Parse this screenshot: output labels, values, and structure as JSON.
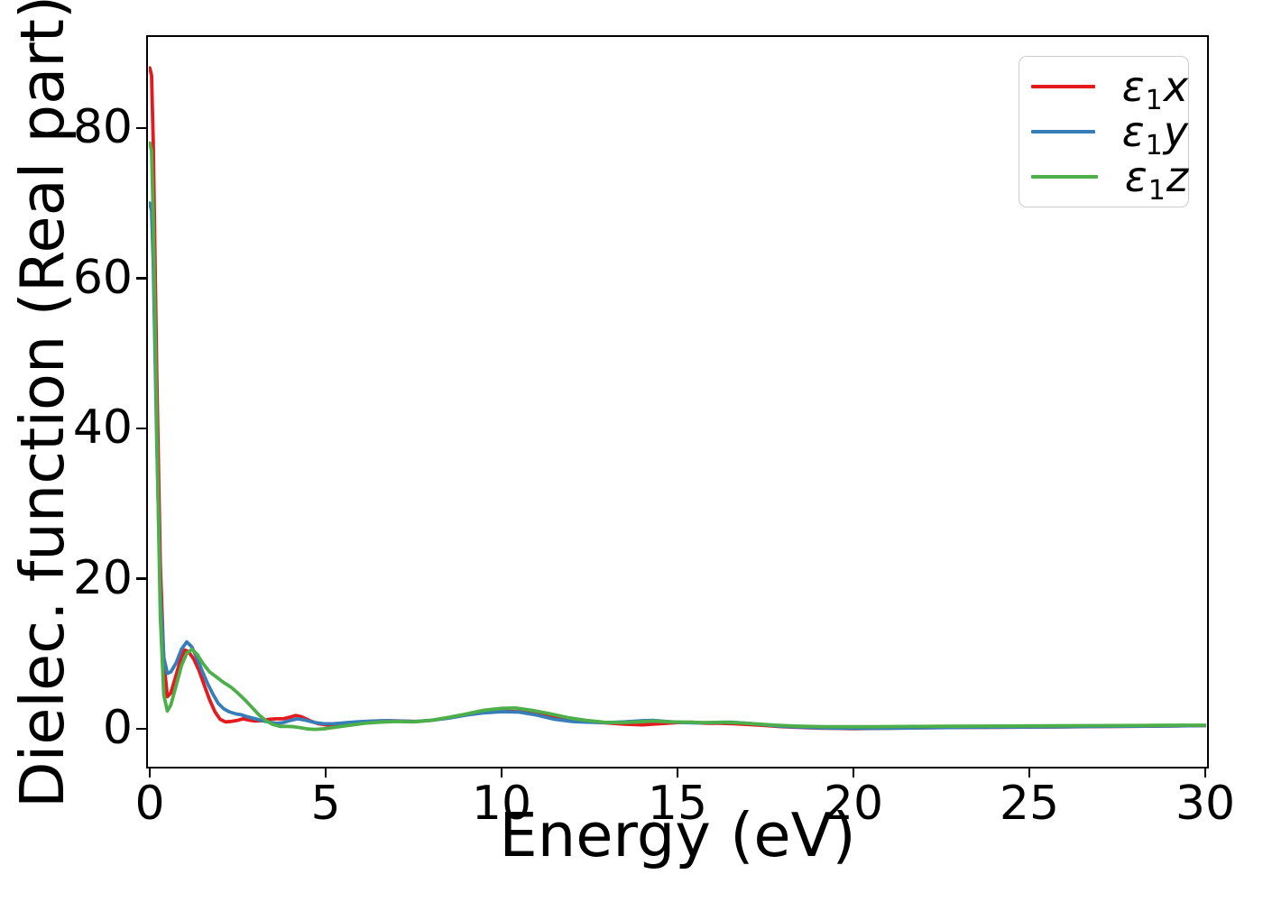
{
  "figure": {
    "xlabel": "Energy (eV)",
    "ylabel": "Dielec. function (Real part)",
    "background_color": "#ffffff",
    "spine_color": "#000000"
  },
  "legend": {
    "items": [
      {
        "epsilon": "ε",
        "sub": "1",
        "axis": "x",
        "color": "#e41a1c"
      },
      {
        "epsilon": "ε",
        "sub": "1",
        "axis": "y",
        "color": "#377eb8"
      },
      {
        "epsilon": "ε",
        "sub": "1",
        "axis": "z",
        "color": "#4daf4a"
      }
    ]
  },
  "chart_data": {
    "type": "line",
    "title": "",
    "xlabel": "Energy (eV)",
    "ylabel": "Dielec. function (Real part)",
    "xlim": [
      0,
      30
    ],
    "ylim": [
      -4.9,
      92.0
    ],
    "xticks": [
      0,
      5,
      10,
      15,
      20,
      25,
      30
    ],
    "yticks": [
      0,
      20,
      40,
      60,
      80
    ],
    "grid": false,
    "legend_position": "upper right",
    "line_width": 3.8,
    "series": [
      {
        "name": "ε1x",
        "color": "#e41a1c",
        "points": [
          [
            0,
            88
          ],
          [
            0.05,
            87
          ],
          [
            0.1,
            78
          ],
          [
            0.2,
            47
          ],
          [
            0.3,
            22
          ],
          [
            0.4,
            9
          ],
          [
            0.5,
            4.3
          ],
          [
            0.6,
            4.8
          ],
          [
            0.75,
            7.2
          ],
          [
            0.9,
            9.6
          ],
          [
            1.0,
            10.5
          ],
          [
            1.1,
            10.3
          ],
          [
            1.25,
            9.3
          ],
          [
            1.4,
            7.8
          ],
          [
            1.55,
            5.8
          ],
          [
            1.7,
            3.9
          ],
          [
            1.85,
            2.3
          ],
          [
            2.0,
            1.3
          ],
          [
            2.15,
            0.95
          ],
          [
            2.3,
            1.0
          ],
          [
            2.5,
            1.15
          ],
          [
            2.65,
            1.35
          ],
          [
            2.8,
            1.2
          ],
          [
            3.0,
            1.05
          ],
          [
            3.2,
            1.1
          ],
          [
            3.4,
            1.3
          ],
          [
            3.6,
            1.35
          ],
          [
            3.8,
            1.35
          ],
          [
            4.0,
            1.6
          ],
          [
            4.15,
            1.8
          ],
          [
            4.3,
            1.65
          ],
          [
            4.55,
            1.1
          ],
          [
            4.8,
            0.7
          ],
          [
            5.0,
            0.55
          ],
          [
            5.3,
            0.55
          ],
          [
            5.6,
            0.7
          ],
          [
            6.0,
            0.9
          ],
          [
            6.4,
            1.05
          ],
          [
            6.8,
            1.1
          ],
          [
            7.2,
            1.05
          ],
          [
            7.6,
            1.0
          ],
          [
            8.0,
            1.15
          ],
          [
            8.5,
            1.5
          ],
          [
            9.0,
            1.9
          ],
          [
            9.5,
            2.2
          ],
          [
            10.0,
            2.35
          ],
          [
            10.5,
            2.3
          ],
          [
            11.0,
            1.95
          ],
          [
            11.5,
            1.5
          ],
          [
            12.0,
            1.15
          ],
          [
            12.5,
            0.95
          ],
          [
            13.0,
            0.8
          ],
          [
            13.5,
            0.65
          ],
          [
            14.0,
            0.55
          ],
          [
            14.5,
            0.7
          ],
          [
            15.0,
            0.85
          ],
          [
            15.4,
            0.9
          ],
          [
            15.8,
            0.75
          ],
          [
            16.2,
            0.75
          ],
          [
            16.6,
            0.7
          ],
          [
            17.0,
            0.6
          ],
          [
            17.5,
            0.45
          ],
          [
            18.0,
            0.3
          ],
          [
            18.5,
            0.2
          ],
          [
            19.0,
            0.12
          ],
          [
            19.5,
            0.08
          ],
          [
            20.0,
            0.05
          ],
          [
            20.5,
            0.07
          ],
          [
            21.0,
            0.1
          ],
          [
            22.0,
            0.15
          ],
          [
            23.0,
            0.2
          ],
          [
            24.0,
            0.22
          ],
          [
            25.0,
            0.25
          ],
          [
            26.0,
            0.28
          ],
          [
            27.0,
            0.32
          ],
          [
            28.0,
            0.36
          ],
          [
            29.0,
            0.4
          ],
          [
            30.0,
            0.45
          ]
        ]
      },
      {
        "name": "ε1y",
        "color": "#377eb8",
        "points": [
          [
            0,
            70
          ],
          [
            0.05,
            69
          ],
          [
            0.1,
            62
          ],
          [
            0.2,
            38
          ],
          [
            0.3,
            18
          ],
          [
            0.4,
            9.5
          ],
          [
            0.5,
            7.4
          ],
          [
            0.6,
            7.6
          ],
          [
            0.75,
            8.8
          ],
          [
            0.9,
            10.6
          ],
          [
            1.05,
            11.6
          ],
          [
            1.2,
            10.9
          ],
          [
            1.35,
            9.3
          ],
          [
            1.5,
            7.6
          ],
          [
            1.65,
            6.0
          ],
          [
            1.8,
            4.6
          ],
          [
            1.95,
            3.4
          ],
          [
            2.1,
            2.7
          ],
          [
            2.25,
            2.3
          ],
          [
            2.45,
            2.0
          ],
          [
            2.6,
            1.9
          ],
          [
            2.8,
            1.6
          ],
          [
            3.0,
            1.35
          ],
          [
            3.2,
            1.1
          ],
          [
            3.4,
            0.9
          ],
          [
            3.6,
            0.75
          ],
          [
            3.8,
            0.85
          ],
          [
            4.0,
            1.15
          ],
          [
            4.2,
            1.35
          ],
          [
            4.4,
            1.2
          ],
          [
            4.7,
            0.85
          ],
          [
            4.95,
            0.7
          ],
          [
            5.2,
            0.7
          ],
          [
            5.5,
            0.8
          ],
          [
            5.9,
            0.95
          ],
          [
            6.3,
            1.05
          ],
          [
            6.7,
            1.1
          ],
          [
            7.1,
            1.05
          ],
          [
            7.5,
            1.0
          ],
          [
            8.0,
            1.15
          ],
          [
            8.5,
            1.45
          ],
          [
            9.0,
            1.85
          ],
          [
            9.5,
            2.15
          ],
          [
            10.0,
            2.3
          ],
          [
            10.5,
            2.25
          ],
          [
            11.0,
            1.85
          ],
          [
            11.5,
            1.3
          ],
          [
            12.0,
            1.0
          ],
          [
            12.5,
            0.9
          ],
          [
            13.0,
            0.85
          ],
          [
            13.5,
            0.95
          ],
          [
            14.0,
            1.1
          ],
          [
            14.3,
            1.15
          ],
          [
            14.7,
            1.0
          ],
          [
            15.0,
            0.9
          ],
          [
            15.5,
            0.8
          ],
          [
            16.0,
            0.85
          ],
          [
            16.5,
            0.9
          ],
          [
            17.0,
            0.75
          ],
          [
            17.5,
            0.55
          ],
          [
            18.0,
            0.35
          ],
          [
            18.5,
            0.25
          ],
          [
            19.0,
            0.15
          ],
          [
            19.5,
            0.1
          ],
          [
            20.0,
            0.08
          ],
          [
            20.5,
            0.08
          ],
          [
            21.0,
            0.1
          ],
          [
            22.0,
            0.15
          ],
          [
            23.0,
            0.2
          ],
          [
            24.0,
            0.24
          ],
          [
            25.0,
            0.26
          ],
          [
            26.0,
            0.3
          ],
          [
            27.0,
            0.33
          ],
          [
            28.0,
            0.37
          ],
          [
            29.0,
            0.41
          ],
          [
            30.0,
            0.45
          ]
        ]
      },
      {
        "name": "ε1z",
        "color": "#4daf4a",
        "points": [
          [
            0,
            78
          ],
          [
            0.05,
            77
          ],
          [
            0.1,
            68
          ],
          [
            0.2,
            40
          ],
          [
            0.3,
            15
          ],
          [
            0.4,
            4.5
          ],
          [
            0.5,
            2.4
          ],
          [
            0.6,
            3.2
          ],
          [
            0.75,
            5.8
          ],
          [
            0.9,
            8.4
          ],
          [
            1.05,
            10.1
          ],
          [
            1.2,
            10.6
          ],
          [
            1.35,
            9.9
          ],
          [
            1.5,
            8.8
          ],
          [
            1.7,
            7.6
          ],
          [
            1.9,
            6.9
          ],
          [
            2.1,
            6.2
          ],
          [
            2.3,
            5.6
          ],
          [
            2.5,
            4.8
          ],
          [
            2.7,
            3.9
          ],
          [
            2.9,
            2.9
          ],
          [
            3.1,
            1.9
          ],
          [
            3.3,
            1.1
          ],
          [
            3.5,
            0.6
          ],
          [
            3.7,
            0.35
          ],
          [
            3.9,
            0.35
          ],
          [
            4.1,
            0.3
          ],
          [
            4.3,
            0.15
          ],
          [
            4.5,
            0.0
          ],
          [
            4.7,
            -0.05
          ],
          [
            5.0,
            0.05
          ],
          [
            5.3,
            0.25
          ],
          [
            5.7,
            0.5
          ],
          [
            6.1,
            0.75
          ],
          [
            6.5,
            0.9
          ],
          [
            7.0,
            1.0
          ],
          [
            7.5,
            0.95
          ],
          [
            8.0,
            1.15
          ],
          [
            8.5,
            1.55
          ],
          [
            9.0,
            2.0
          ],
          [
            9.5,
            2.5
          ],
          [
            10.0,
            2.75
          ],
          [
            10.4,
            2.8
          ],
          [
            10.9,
            2.45
          ],
          [
            11.4,
            2.0
          ],
          [
            11.9,
            1.5
          ],
          [
            12.4,
            1.15
          ],
          [
            12.9,
            0.9
          ],
          [
            13.4,
            0.85
          ],
          [
            13.9,
            0.95
          ],
          [
            14.3,
            1.05
          ],
          [
            14.8,
            0.95
          ],
          [
            15.3,
            0.9
          ],
          [
            15.8,
            0.85
          ],
          [
            16.3,
            0.9
          ],
          [
            16.8,
            0.8
          ],
          [
            17.3,
            0.65
          ],
          [
            17.8,
            0.5
          ],
          [
            18.3,
            0.4
          ],
          [
            18.8,
            0.33
          ],
          [
            19.3,
            0.3
          ],
          [
            19.8,
            0.3
          ],
          [
            20.5,
            0.3
          ],
          [
            21.5,
            0.33
          ],
          [
            22.5,
            0.36
          ],
          [
            23.5,
            0.38
          ],
          [
            24.5,
            0.4
          ],
          [
            25.5,
            0.42
          ],
          [
            26.5,
            0.44
          ],
          [
            27.5,
            0.46
          ],
          [
            28.5,
            0.48
          ],
          [
            29.3,
            0.5
          ],
          [
            30.0,
            0.5
          ]
        ]
      }
    ]
  }
}
